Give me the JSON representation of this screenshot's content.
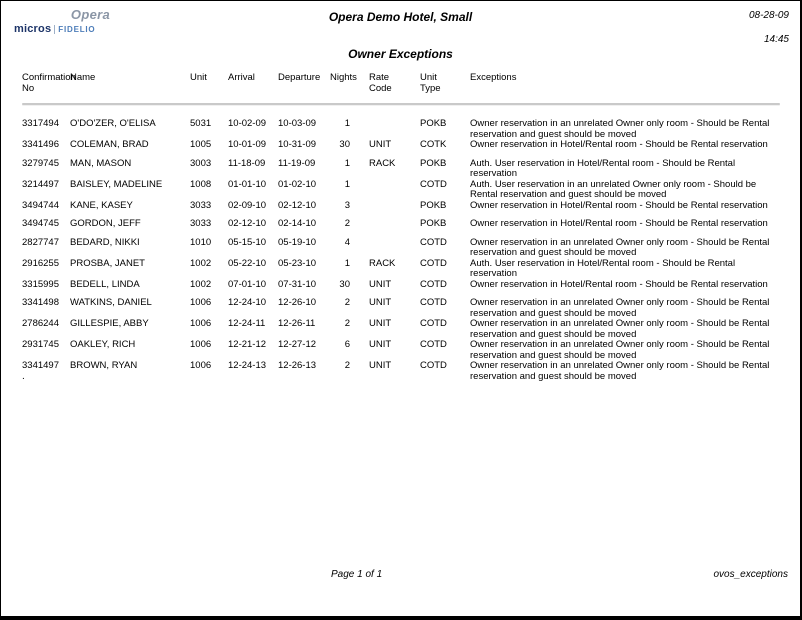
{
  "logo": {
    "opera_text": "Opera",
    "micros_text": "micros",
    "fidelio_text": "FIDELIO",
    "colors": {
      "opera": "#8b96a6",
      "micros": "#1d3468",
      "fidelio": "#4d7db9"
    }
  },
  "header": {
    "hotel_title": "Opera Demo Hotel, Small",
    "date": "08-28-09",
    "time": "14:45",
    "report_title": "Owner Exceptions"
  },
  "table": {
    "headers": [
      "Confirmation\nNo",
      "Name",
      "Unit",
      "Arrival",
      "Departure",
      "Nights",
      "Rate\nCode",
      "Unit\nType",
      "Exceptions"
    ],
    "rows": [
      {
        "conf": "3317494",
        "name": "O'DO'ZER, O'ELISA",
        "unit": "5031",
        "arrival": "10-02-09",
        "departure": "10-03-09",
        "nights": "1",
        "rate": "",
        "unit_type": "POKB",
        "exception": "Owner reservation in an unrelated Owner only room - Should be Rental reservation and guest should be moved"
      },
      {
        "conf": "3341496",
        "name": "COLEMAN, BRAD",
        "unit": "1005",
        "arrival": "10-01-09",
        "departure": "10-31-09",
        "nights": "30",
        "rate": "UNIT",
        "unit_type": "COTK",
        "exception": "Owner reservation in Hotel/Rental room - Should be Rental reservation"
      },
      {
        "conf": "3279745",
        "name": "MAN, MASON",
        "unit": "3003",
        "arrival": "11-18-09",
        "departure": "11-19-09",
        "nights": "1",
        "rate": "RACK",
        "unit_type": "POKB",
        "exception": "Auth. User reservation in Hotel/Rental room - Should be Rental reservation"
      },
      {
        "conf": "3214497",
        "name": "BAISLEY, MADELINE",
        "unit": "1008",
        "arrival": "01-01-10",
        "departure": "01-02-10",
        "nights": "1",
        "rate": "",
        "unit_type": "COTD",
        "exception": "Auth. User reservation in an unrelated Owner only room - Should be Rental reservation and guest should be moved"
      },
      {
        "conf": "3494744",
        "name": "KANE, KASEY",
        "unit": "3033",
        "arrival": "02-09-10",
        "departure": "02-12-10",
        "nights": "3",
        "rate": "",
        "unit_type": "POKB",
        "exception": "Owner reservation in Hotel/Rental room - Should be Rental reservation"
      },
      {
        "conf": "3494745",
        "name": "GORDON, JEFF",
        "unit": "3033",
        "arrival": "02-12-10",
        "departure": "02-14-10",
        "nights": "2",
        "rate": "",
        "unit_type": "POKB",
        "exception": "Owner reservation in Hotel/Rental room - Should be Rental reservation"
      },
      {
        "conf": "2827747",
        "name": "BEDARD, NIKKI",
        "unit": "1010",
        "arrival": "05-15-10",
        "departure": "05-19-10",
        "nights": "4",
        "rate": "",
        "unit_type": "COTD",
        "exception": "Owner reservation in an unrelated Owner only room - Should be Rental reservation and guest should be moved"
      },
      {
        "conf": "2916255",
        "name": "PROSBA, JANET",
        "unit": "1002",
        "arrival": "05-22-10",
        "departure": "05-23-10",
        "nights": "1",
        "rate": "RACK",
        "unit_type": "COTD",
        "exception": "Auth. User reservation in Hotel/Rental room - Should be Rental reservation"
      },
      {
        "conf": "3315995",
        "name": "BEDELL, LINDA",
        "unit": "1002",
        "arrival": "07-01-10",
        "departure": "07-31-10",
        "nights": "30",
        "rate": "UNIT",
        "unit_type": "COTD",
        "exception": "Owner reservation in Hotel/Rental room - Should be Rental reservation"
      },
      {
        "conf": "3341498",
        "name": "WATKINS, DANIEL",
        "unit": "1006",
        "arrival": "12-24-10",
        "departure": "12-26-10",
        "nights": "2",
        "rate": "UNIT",
        "unit_type": "COTD",
        "exception": "Owner reservation in an unrelated Owner only room - Should be Rental reservation and guest should be moved"
      },
      {
        "conf": "2786244",
        "name": "GILLESPIE, ABBY",
        "unit": "1006",
        "arrival": "12-24-11",
        "departure": "12-26-11",
        "nights": "2",
        "rate": "UNIT",
        "unit_type": "COTD",
        "exception": "Owner reservation in an unrelated Owner only room - Should be Rental reservation and guest should be moved"
      },
      {
        "conf": "2931745",
        "name": "OAKLEY, RICH",
        "unit": "1006",
        "arrival": "12-21-12",
        "departure": "12-27-12",
        "nights": "6",
        "rate": "UNIT",
        "unit_type": "COTD",
        "exception": "Owner reservation in an unrelated Owner only room - Should be Rental reservation and guest should be moved"
      },
      {
        "conf": "3341497",
        "name": "BROWN, RYAN",
        "unit": "1006",
        "arrival": "12-24-13",
        "departure": "12-26-13",
        "nights": "2",
        "rate": "UNIT",
        "unit_type": "COTD",
        "exception": "Owner reservation in an unrelated Owner only room - Should be Rental reservation and guest should be moved"
      }
    ]
  },
  "footer": {
    "page_label": "Page 1 of 1",
    "report_code": "ovos_exceptions",
    "stray_mark": "."
  }
}
